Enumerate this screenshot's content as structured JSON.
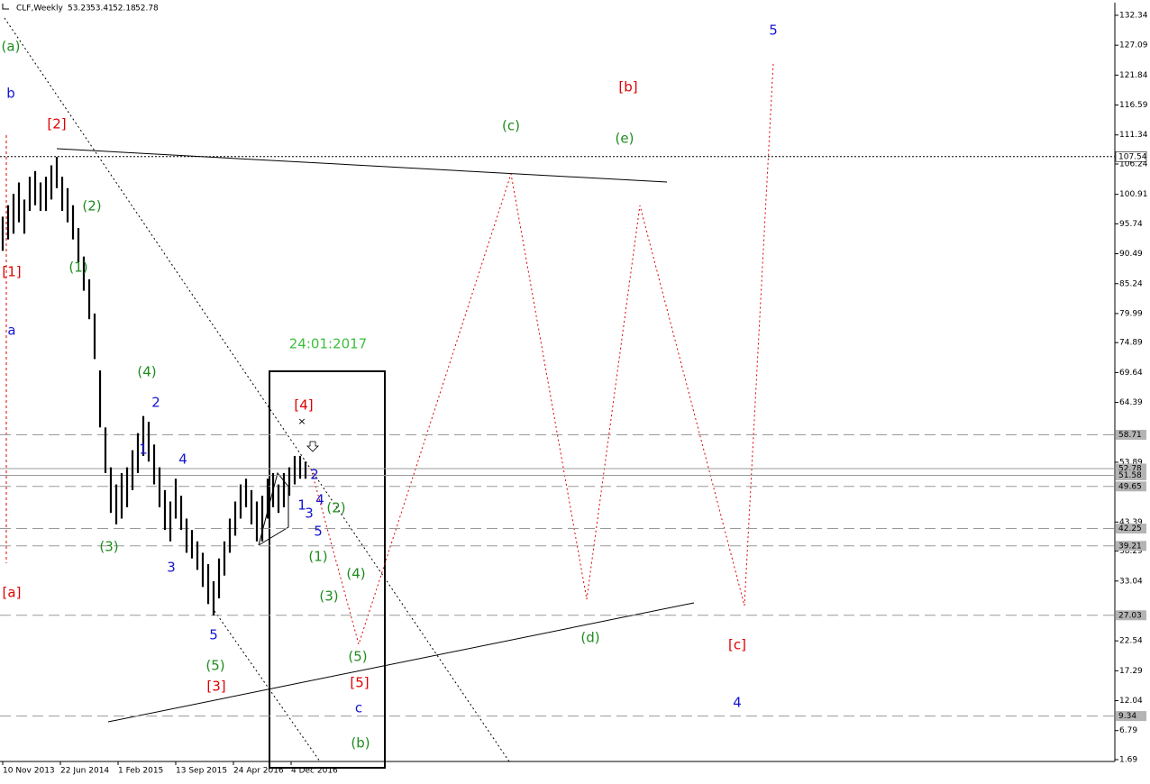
{
  "chart_data": {
    "type": "ohlc",
    "title": "CLF,Weekly",
    "ohlc": [
      53.23,
      53.41,
      52.18,
      52.78
    ],
    "xlim": [
      -1.5,
      617
    ],
    "ylim": [
      1.37,
      134.55
    ],
    "xticks": [
      {
        "value": 0,
        "label": "10 Nov 2013"
      },
      {
        "value": 32,
        "label": "22 Jun 2014"
      },
      {
        "value": 64,
        "label": "1 Feb 2015"
      },
      {
        "value": 96,
        "label": "13 Sep 2015"
      },
      {
        "value": 128,
        "label": "24 Apr 2016"
      },
      {
        "value": 160,
        "label": "4 Dec 2016"
      }
    ],
    "yticks": [
      132.34,
      127.09,
      121.84,
      116.59,
      111.34,
      106.24,
      100.91,
      95.74,
      90.49,
      85.24,
      79.99,
      74.89,
      69.64,
      64.39,
      53.89,
      43.39,
      38.29,
      33.04,
      22.54,
      17.29,
      12.04,
      6.79,
      1.69
    ],
    "levels": [
      {
        "value": 107.54,
        "style": "dotted"
      },
      {
        "value": 58.71,
        "style": "dashed"
      },
      {
        "value": 52.78,
        "style": "solid"
      },
      {
        "value": 51.58,
        "style": "solid"
      },
      {
        "value": 49.65,
        "style": "dashed"
      },
      {
        "value": 42.25,
        "style": "dashed"
      },
      {
        "value": 39.21,
        "style": "dashed"
      },
      {
        "value": 27.03,
        "style": "dashed"
      },
      {
        "value": 9.34,
        "style": "dashed"
      }
    ],
    "color": "#000000",
    "x": [
      0,
      3,
      6,
      9,
      12,
      15,
      18,
      21,
      24,
      27,
      30,
      33,
      36,
      39,
      42,
      45,
      48,
      51,
      54,
      57,
      60,
      63,
      66,
      69,
      72,
      75,
      78,
      81,
      84,
      87,
      90,
      93,
      96,
      99,
      102,
      105,
      108,
      111,
      114,
      117,
      120,
      123,
      126,
      129,
      132,
      135,
      138,
      141,
      144,
      147,
      150,
      153,
      156,
      159,
      162,
      165,
      168
    ],
    "high": [
      97,
      99,
      101,
      103,
      100,
      104,
      105,
      103,
      104,
      106,
      107.5,
      104,
      102,
      99,
      95,
      90,
      86,
      80,
      70,
      60,
      53,
      50,
      52,
      53,
      56,
      59,
      62,
      61,
      57,
      53,
      49,
      47,
      51,
      48,
      44,
      42,
      40,
      38,
      36,
      33,
      37,
      40,
      44,
      47,
      50,
      51,
      49,
      47,
      48,
      51,
      52,
      50,
      52,
      53,
      55,
      55,
      54
    ],
    "low": [
      91,
      93,
      94,
      96,
      94,
      98,
      99,
      98,
      98,
      100,
      102,
      98,
      96,
      93,
      89,
      84,
      79,
      72,
      60,
      52,
      45,
      43,
      44,
      46,
      49,
      52,
      55,
      54,
      50,
      46,
      42,
      40,
      44,
      42,
      38,
      37,
      35,
      32,
      29,
      27,
      30,
      34,
      38,
      41,
      44,
      46,
      43,
      40,
      40,
      44,
      46,
      45,
      46,
      48,
      50,
      51,
      51
    ],
    "annotations": [
      {
        "text": "(a)",
        "color": "#1e8c1e"
      },
      {
        "text": "b",
        "color": "#1414d2"
      },
      {
        "text": "[2]",
        "color": "#e00000"
      },
      {
        "text": "(2)",
        "color": "#1e8c1e"
      },
      {
        "text": "(1)",
        "color": "#1e8c1e"
      },
      {
        "text": "[1]",
        "color": "#e00000"
      },
      {
        "text": "a",
        "color": "#1414d2"
      },
      {
        "text": "(4)",
        "color": "#1e8c1e"
      },
      {
        "text": "2",
        "color": "#1414d2"
      },
      {
        "text": "1",
        "color": "#1414d2"
      },
      {
        "text": "4",
        "color": "#1414d2"
      },
      {
        "text": "(3)",
        "color": "#1e8c1e"
      },
      {
        "text": "3",
        "color": "#1414d2"
      },
      {
        "text": "[a]",
        "color": "#e00000"
      },
      {
        "text": "5",
        "color": "#1414d2"
      },
      {
        "text": "(5)",
        "color": "#1e8c1e"
      },
      {
        "text": "[3]",
        "color": "#e00000"
      },
      {
        "text": "24:01:2017",
        "color": "#3cbf3c"
      },
      {
        "text": "[4]",
        "color": "#e00000"
      },
      {
        "text": "2",
        "color": "#1414d2"
      },
      {
        "text": "1",
        "color": "#1414d2"
      },
      {
        "text": "3",
        "color": "#1414d2"
      },
      {
        "text": "4",
        "color": "#1414d2"
      },
      {
        "text": "(2)",
        "color": "#1e8c1e"
      },
      {
        "text": "5",
        "color": "#1414d2"
      },
      {
        "text": "(1)",
        "color": "#1e8c1e"
      },
      {
        "text": "(4)",
        "color": "#1e8c1e"
      },
      {
        "text": "(3)",
        "color": "#1e8c1e"
      },
      {
        "text": "(5)",
        "color": "#1e8c1e"
      },
      {
        "text": "[5]",
        "color": "#e00000"
      },
      {
        "text": "c",
        "color": "#1414d2"
      },
      {
        "text": "(b)",
        "color": "#1e8c1e"
      },
      {
        "text": "(c)",
        "color": "#1e8c1e"
      },
      {
        "text": "[b]",
        "color": "#e00000"
      },
      {
        "text": "(e)",
        "color": "#1e8c1e"
      },
      {
        "text": "5",
        "color": "#1414d2"
      },
      {
        "text": "(d)",
        "color": "#1e8c1e"
      },
      {
        "text": "[c]",
        "color": "#e00000"
      },
      {
        "text": "4",
        "color": "#1414d2"
      }
    ]
  }
}
